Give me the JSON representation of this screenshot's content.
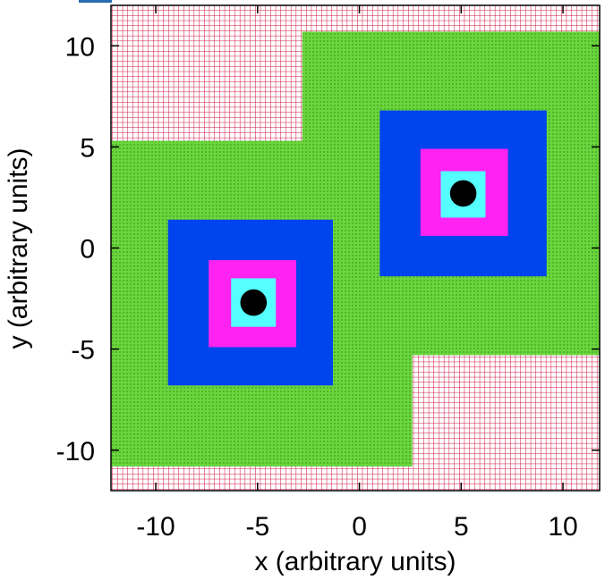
{
  "chart_data": {
    "type": "diagram",
    "title": "",
    "xlabel": "x (arbitrary units)",
    "ylabel": "y (arbitrary units)",
    "xlim": [
      -12.2,
      11.8
    ],
    "ylim": [
      -12.0,
      12.0
    ],
    "x_ticks": [
      {
        "value": -10,
        "label": "-10"
      },
      {
        "value": -5,
        "label": "-5"
      },
      {
        "value": 0,
        "label": "0"
      },
      {
        "value": 5,
        "label": "5"
      },
      {
        "value": 10,
        "label": "10"
      }
    ],
    "y_ticks": [
      {
        "value": 10,
        "label": "10"
      },
      {
        "value": 5,
        "label": "5"
      },
      {
        "value": 0,
        "label": "0"
      },
      {
        "value": -5,
        "label": "-5"
      },
      {
        "value": -10,
        "label": "-10"
      }
    ],
    "background": {
      "pattern": "grid",
      "color": "#cc1144",
      "spacing": 0.25
    },
    "regions": [
      {
        "name": "green-region-left",
        "color": "#6ad63c",
        "pattern": "dots",
        "x0": -12.2,
        "x1": 2.6,
        "y0": -10.8,
        "y1": 5.3
      },
      {
        "name": "green-region-right",
        "color": "#6ad63c",
        "pattern": "dots",
        "x0": -2.8,
        "x1": 11.8,
        "y0": -5.3,
        "y1": 10.7
      },
      {
        "name": "blue-square-lower-left",
        "color": "#0044ee",
        "x0": -9.4,
        "x1": -1.3,
        "y0": -6.8,
        "y1": 1.4
      },
      {
        "name": "magenta-square-lower-left",
        "color": "#ff22f0",
        "x0": -7.4,
        "x1": -3.1,
        "y0": -4.9,
        "y1": -0.6
      },
      {
        "name": "cyan-square-lower-left",
        "color": "#55ffff",
        "x0": -6.3,
        "x1": -4.1,
        "y0": -3.9,
        "y1": -1.5
      },
      {
        "name": "blue-square-upper-right",
        "color": "#0044ee",
        "x0": 1.0,
        "x1": 9.2,
        "y0": -1.4,
        "y1": 6.8
      },
      {
        "name": "magenta-square-upper-right",
        "color": "#ff22f0",
        "x0": 3.0,
        "x1": 7.3,
        "y0": 0.6,
        "y1": 4.9
      },
      {
        "name": "cyan-square-upper-right",
        "color": "#55ffff",
        "x0": 4.0,
        "x1": 6.2,
        "y0": 1.5,
        "y1": 3.8
      }
    ],
    "points": [
      {
        "name": "black-dot-lower-left",
        "x": -5.2,
        "y": -2.7,
        "radius": 0.65,
        "color": "#000000"
      },
      {
        "name": "black-dot-upper-right",
        "x": 5.1,
        "y": 2.7,
        "radius": 0.65,
        "color": "#000000"
      }
    ]
  }
}
